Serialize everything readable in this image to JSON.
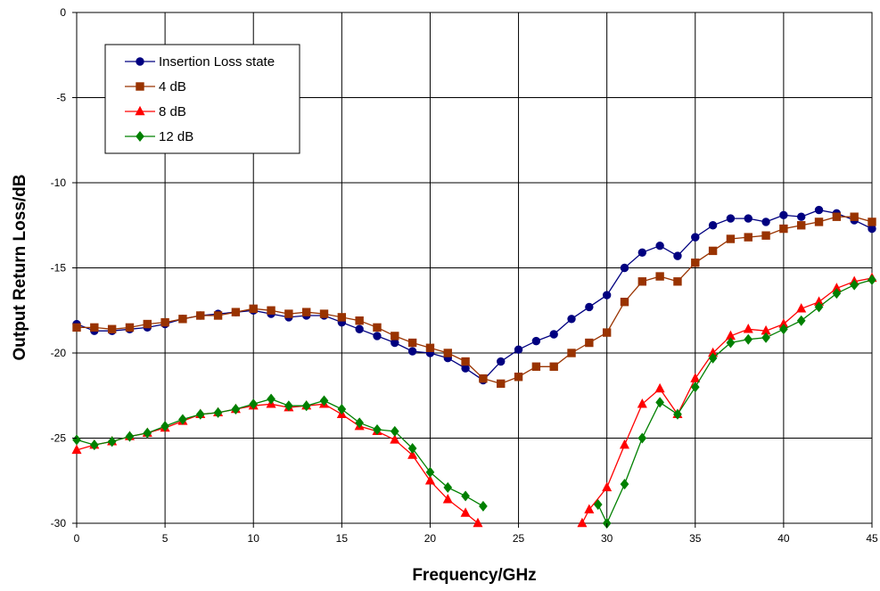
{
  "chart_data": {
    "type": "line",
    "title": "",
    "xlabel": "Frequency/GHz",
    "ylabel": "Output Return Loss/dB",
    "xlim": [
      0,
      45
    ],
    "ylim": [
      -30,
      0
    ],
    "x_ticks": [
      0,
      5,
      10,
      15,
      20,
      25,
      30,
      35,
      40,
      45
    ],
    "y_ticks": [
      0,
      -5,
      -10,
      -15,
      -20,
      -25,
      -30
    ],
    "grid": true,
    "legend_position": "top-left",
    "series": [
      {
        "name": "Insertion Loss state",
        "color": "#000080",
        "marker": "circle",
        "x": [
          0,
          1,
          2,
          3,
          4,
          5,
          6,
          7,
          8,
          9,
          10,
          11,
          12,
          13,
          14,
          15,
          16,
          17,
          18,
          19,
          20,
          21,
          22,
          23,
          24,
          25,
          26,
          27,
          28,
          29,
          30,
          31,
          32,
          33,
          34,
          35,
          36,
          37,
          38,
          39,
          40,
          41,
          42,
          43,
          44,
          45
        ],
        "y": [
          -18.3,
          -18.7,
          -18.7,
          -18.6,
          -18.5,
          -18.3,
          -18.0,
          -17.8,
          -17.7,
          -17.6,
          -17.5,
          -17.7,
          -17.9,
          -17.8,
          -17.8,
          -18.2,
          -18.6,
          -19.0,
          -19.4,
          -19.9,
          -20.0,
          -20.3,
          -20.9,
          -21.6,
          -20.5,
          -19.8,
          -19.3,
          -18.9,
          -18.0,
          -17.3,
          -16.6,
          -15.0,
          -14.1,
          -13.7,
          -14.3,
          -13.2,
          -12.5,
          -12.1,
          -12.1,
          -12.3,
          -11.9,
          -12.0,
          -11.6,
          -11.8,
          -12.2,
          -12.7
        ]
      },
      {
        "name": "4 dB",
        "color": "#993300",
        "marker": "square",
        "x": [
          0,
          1,
          2,
          3,
          4,
          5,
          6,
          7,
          8,
          9,
          10,
          11,
          12,
          13,
          14,
          15,
          16,
          17,
          18,
          19,
          20,
          21,
          22,
          23,
          24,
          25,
          26,
          27,
          28,
          29,
          30,
          31,
          32,
          33,
          34,
          35,
          36,
          37,
          38,
          39,
          40,
          41,
          42,
          43,
          44,
          45
        ],
        "y": [
          -18.5,
          -18.5,
          -18.6,
          -18.5,
          -18.3,
          -18.2,
          -18.0,
          -17.8,
          -17.8,
          -17.6,
          -17.4,
          -17.5,
          -17.7,
          -17.6,
          -17.7,
          -17.9,
          -18.1,
          -18.5,
          -19.0,
          -19.4,
          -19.7,
          -20.0,
          -20.5,
          -21.5,
          -21.8,
          -21.4,
          -20.8,
          -20.8,
          -20.0,
          -19.4,
          -18.8,
          -17.0,
          -15.8,
          -15.5,
          -15.8,
          -14.7,
          -14.0,
          -13.3,
          -13.2,
          -13.1,
          -12.7,
          -12.5,
          -12.3,
          -12.0,
          -12.0,
          -12.3
        ]
      },
      {
        "name": "8 dB",
        "color": "#ff0000",
        "marker": "triangle",
        "x": [
          0,
          1,
          2,
          3,
          4,
          5,
          6,
          7,
          8,
          9,
          10,
          11,
          12,
          13,
          14,
          15,
          16,
          17,
          18,
          19,
          20,
          21,
          22,
          22.7,
          null,
          28.6,
          29,
          30,
          31,
          32,
          33,
          34,
          35,
          36,
          37,
          38,
          39,
          40,
          41,
          42,
          43,
          44,
          45
        ],
        "y": [
          -25.7,
          -25.4,
          -25.2,
          -24.9,
          -24.7,
          -24.4,
          -24.0,
          -23.6,
          -23.5,
          -23.3,
          -23.1,
          -23.0,
          -23.2,
          -23.1,
          -23.0,
          -23.6,
          -24.3,
          -24.6,
          -25.1,
          -26.0,
          -27.5,
          -28.6,
          -29.4,
          -30.0,
          null,
          -30.0,
          -29.2,
          -27.9,
          -25.4,
          -23.0,
          -22.1,
          -23.6,
          -21.5,
          -20.0,
          -19.0,
          -18.6,
          -18.7,
          -18.3,
          -17.4,
          -17.0,
          -16.2,
          -15.8,
          -15.6
        ]
      },
      {
        "name": "12 dB",
        "color": "#008000",
        "marker": "diamond",
        "x": [
          0,
          1,
          2,
          3,
          4,
          5,
          6,
          7,
          8,
          9,
          10,
          11,
          12,
          13,
          14,
          15,
          16,
          17,
          18,
          19,
          20,
          21,
          22,
          23,
          null,
          29.5,
          30,
          31,
          32,
          33,
          34,
          35,
          36,
          37,
          38,
          39,
          40,
          41,
          42,
          43,
          44,
          45
        ],
        "y": [
          -25.1,
          -25.4,
          -25.2,
          -24.9,
          -24.7,
          -24.3,
          -23.9,
          -23.6,
          -23.5,
          -23.3,
          -23.0,
          -22.7,
          -23.1,
          -23.1,
          -22.8,
          -23.3,
          -24.1,
          -24.5,
          -24.6,
          -25.6,
          -27.0,
          -27.9,
          -28.4,
          -29.0,
          null,
          -28.9,
          -30.0,
          -27.7,
          -25.0,
          -22.9,
          -23.6,
          -22.0,
          -20.3,
          -19.4,
          -19.2,
          -19.1,
          -18.6,
          -18.1,
          -17.3,
          -16.5,
          -16.0,
          -15.7
        ]
      }
    ]
  }
}
